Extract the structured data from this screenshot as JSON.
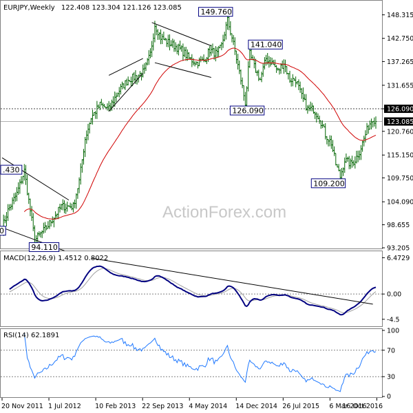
{
  "chart_data": {
    "type": "line",
    "title": "EURJPY,Weekly",
    "ohlc_summary": "122.408 123.304 121.126 123.085",
    "watermark": "ActionForex.com",
    "x_labels": [
      "20 Nov 2011",
      "1 Jul 2012",
      "10 Feb 2013",
      "22 Sep 2013",
      "4 May 2014",
      "14 Dec 2014",
      "26 Jul 2015",
      "6 Mar 2016",
      "16 Oct 2016"
    ],
    "price_panel": {
      "y_ticks": [
        "148.315",
        "142.750",
        "137.265",
        "131.655",
        "126.090",
        "120.760",
        "115.150",
        "109.750",
        "104.090",
        "98.655",
        "93.205"
      ],
      "ylim": [
        93.205,
        151.5
      ],
      "last_price": "123.085",
      "reference_level": "126.090",
      "annotations": [
        {
          "label": "149.760",
          "week": 152,
          "price": 149.76
        },
        {
          "label": "141.040",
          "week": 167,
          "price": 141.04
        },
        {
          "label": "126.090",
          "week": 164,
          "price": 126.09
        },
        {
          "label": "109.200",
          "week": 228,
          "price": 109.2
        },
        {
          "label": ".430",
          "week": 8,
          "price": 111.43
        },
        {
          "label": "94.110",
          "week": 22,
          "price": 94.11
        },
        {
          "label": "0",
          "week": 0,
          "price": 97.0
        }
      ],
      "close_anchors": [
        [
          0,
          98
        ],
        [
          4,
          102
        ],
        [
          10,
          106
        ],
        [
          15,
          111.4
        ],
        [
          22,
          95
        ],
        [
          30,
          98
        ],
        [
          40,
          103
        ],
        [
          48,
          103
        ],
        [
          52,
          109
        ],
        [
          56,
          119
        ],
        [
          60,
          124
        ],
        [
          66,
          127
        ],
        [
          72,
          126
        ],
        [
          78,
          130
        ],
        [
          85,
          133
        ],
        [
          92,
          134
        ],
        [
          96,
          135
        ],
        [
          100,
          139
        ],
        [
          103,
          146
        ],
        [
          107,
          143
        ],
        [
          111,
          142
        ],
        [
          116,
          141
        ],
        [
          121,
          140
        ],
        [
          126,
          138
        ],
        [
          131,
          137
        ],
        [
          136,
          137.5
        ],
        [
          140,
          140
        ],
        [
          145,
          139
        ],
        [
          148,
          141
        ],
        [
          152,
          147
        ],
        [
          155,
          143
        ],
        [
          158,
          138
        ],
        [
          161,
          133
        ],
        [
          164,
          127.5
        ],
        [
          167,
          139
        ],
        [
          170,
          136
        ],
        [
          174,
          133
        ],
        [
          178,
          138
        ],
        [
          182,
          137
        ],
        [
          186,
          135
        ],
        [
          190,
          137
        ],
        [
          194,
          133
        ],
        [
          198,
          133
        ],
        [
          202,
          129
        ],
        [
          206,
          126
        ],
        [
          210,
          126
        ],
        [
          214,
          124
        ],
        [
          218,
          120
        ],
        [
          222,
          118
        ],
        [
          225,
          113
        ],
        [
          228,
          110
        ],
        [
          231,
          114
        ],
        [
          235,
          113
        ],
        [
          238,
          114
        ],
        [
          241,
          116
        ],
        [
          244,
          119
        ],
        [
          247,
          122
        ],
        [
          250,
          124
        ],
        [
          252,
          123.1
        ]
      ]
    },
    "macd_panel": {
      "label": "MACD(12,26,9) 1.4512 0.8022",
      "y_ticks": [
        "6.4729",
        "0.00",
        "-4.5"
      ],
      "ylim": [
        -5.5,
        7.5
      ]
    },
    "rsi_panel": {
      "label": "RSI(14) 62.1891",
      "y_ticks": [
        "100",
        "70",
        "30",
        "0"
      ],
      "ylim": [
        0,
        100
      ]
    },
    "colors": {
      "bars": "#006400",
      "ma": "#d00000",
      "macd": "#000080",
      "signal": "#a0a0a0",
      "rsi": "#1e78ff",
      "trend": "#000000",
      "guide": "#404040"
    }
  }
}
